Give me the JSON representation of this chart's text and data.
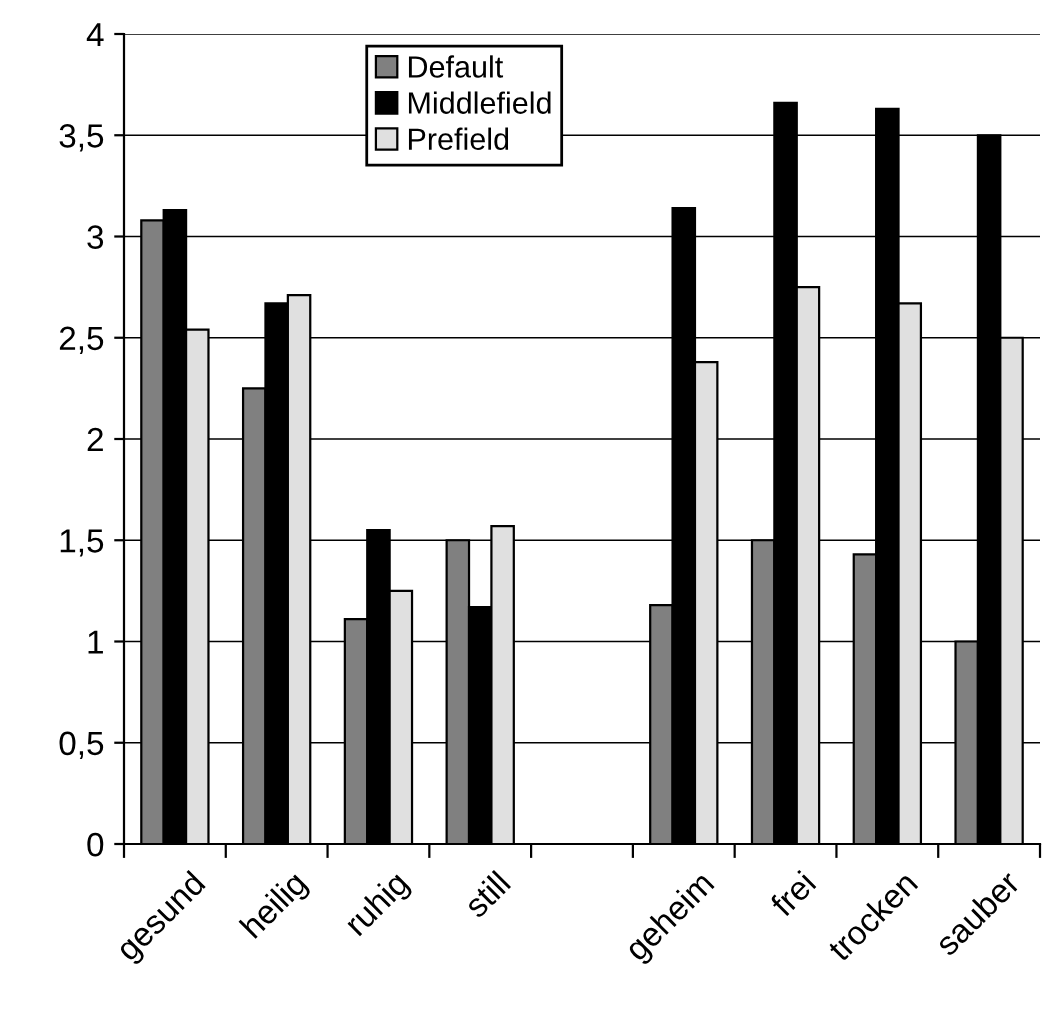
{
  "chart_data": {
    "type": "bar",
    "categories": [
      "gesund",
      "heilig",
      "ruhig",
      "still",
      null,
      "geheim",
      "frei",
      "trocken",
      "sauber"
    ],
    "series": [
      {
        "name": "Default",
        "color": "#808080",
        "values": [
          3.08,
          2.25,
          1.11,
          1.5,
          null,
          1.18,
          1.5,
          1.43,
          1.0
        ]
      },
      {
        "name": "Middlefield",
        "color": "#000000",
        "values": [
          3.13,
          2.67,
          1.55,
          1.17,
          null,
          3.14,
          3.66,
          3.63,
          3.5
        ]
      },
      {
        "name": "Prefield",
        "color": "#e0e0e0",
        "values": [
          2.54,
          2.71,
          1.25,
          1.57,
          null,
          2.38,
          2.75,
          2.67,
          2.5
        ]
      }
    ],
    "ylim": [
      0,
      4
    ],
    "yticks": [
      {
        "value": 0,
        "label": "0"
      },
      {
        "value": 0.5,
        "label": "0,5"
      },
      {
        "value": 1,
        "label": "1"
      },
      {
        "value": 1.5,
        "label": "1,5"
      },
      {
        "value": 2,
        "label": "2"
      },
      {
        "value": 2.5,
        "label": "2,5"
      },
      {
        "value": 3,
        "label": "3"
      },
      {
        "value": 3.5,
        "label": "3,5"
      },
      {
        "value": 4,
        "label": "4"
      }
    ],
    "grid": "y",
    "legend": "top"
  }
}
